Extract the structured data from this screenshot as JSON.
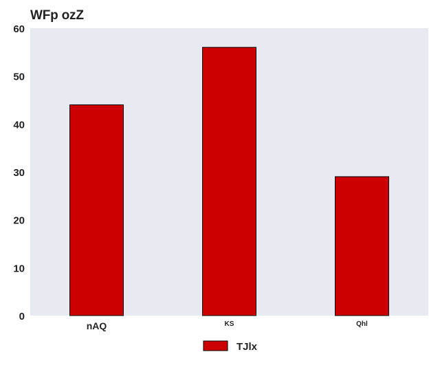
{
  "chart_data": {
    "type": "bar",
    "title": "WFp ozZ",
    "xlabel": "",
    "ylabel": "",
    "categories": [
      "nAQ",
      "KS",
      "Qhl"
    ],
    "series": [
      {
        "name": "TJlx",
        "values": [
          44,
          56,
          29
        ],
        "color": "#cc0000"
      }
    ],
    "ylim": [
      0,
      60
    ],
    "yticks": [
      0,
      10,
      20,
      30,
      40,
      50,
      60
    ],
    "grid": false,
    "background": "#e9e9f1",
    "legend_placement": "bottom-center"
  }
}
